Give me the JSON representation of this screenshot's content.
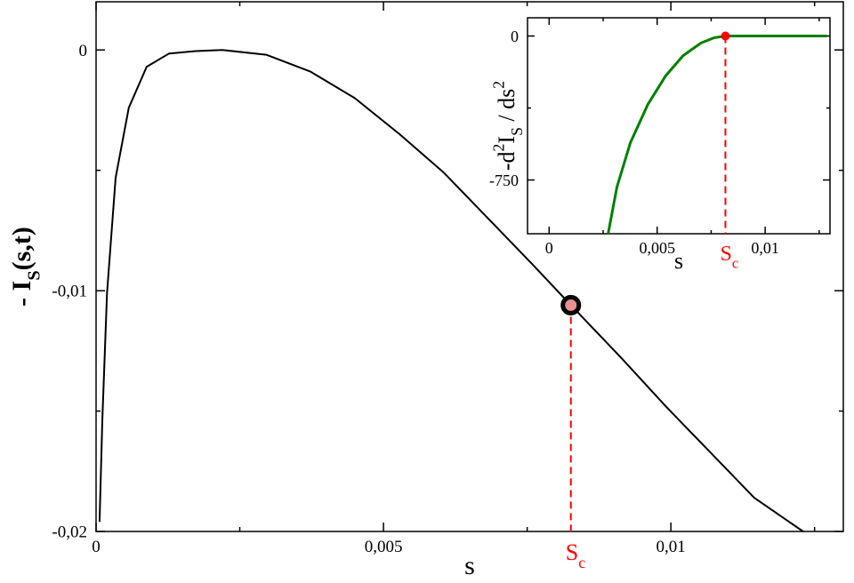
{
  "chart_data": [
    {
      "type": "line",
      "x": [
        6e-05,
        0.00011,
        0.00019,
        0.00034,
        0.00057,
        0.00088,
        0.00127,
        0.00173,
        0.00219,
        0.00296,
        0.00373,
        0.0045,
        0.00528,
        0.00605,
        0.00682,
        0.00759,
        0.00826,
        0.00914,
        0.00991,
        0.01068,
        0.01145,
        0.0123
      ],
      "values": [
        -0.0196,
        -0.0153,
        -0.0101,
        -0.0053,
        -0.0024,
        -0.0007,
        -0.00015,
        -5e-05,
        0,
        -0.0002,
        -0.0009,
        -0.002,
        -0.0035,
        -0.0051,
        -0.007,
        -0.0089,
        -0.0106,
        -0.0128,
        -0.0148,
        -0.0167,
        -0.0186,
        -0.02
      ],
      "color": "#000000",
      "xlabel": "s",
      "ylabel": [
        {
          "text": "- I",
          "pos": "base"
        },
        {
          "text": "S",
          "pos": "sub"
        },
        {
          "text": "(s,t)",
          "pos": "base"
        }
      ],
      "xlim": [
        0,
        0.013
      ],
      "ylim": [
        -0.02,
        0.002
      ],
      "xticks": [
        0,
        {
          "value": 0.005,
          "label": "0,005"
        },
        {
          "value": 0.01,
          "label": "0,01"
        }
      ],
      "yticks": [
        0,
        {
          "value": -0.01,
          "label": "-0,01"
        },
        {
          "value": -0.02,
          "label": "-0,02"
        }
      ],
      "xticks_minor": [
        0.0025,
        0.0075,
        0.0125
      ],
      "yticks_minor": [
        -0.005,
        -0.015
      ],
      "critical_point": {
        "x": 0.00826,
        "y": -0.0106,
        "color": "#ff0000",
        "label": [
          {
            "text": "S",
            "pos": "base"
          },
          {
            "text": "c",
            "pos": "sub"
          }
        ]
      }
    },
    {
      "type": "line",
      "x": [
        0.00273,
        0.00314,
        0.00376,
        0.00457,
        0.00539,
        0.0062,
        0.00702,
        0.00763,
        0.00816,
        0.01286
      ],
      "values": [
        -1030,
        -787,
        -556,
        -356,
        -208,
        -102,
        -37,
        -9,
        0,
        0
      ],
      "color": "#008000",
      "xlabel": "s",
      "ylabel": [
        {
          "text": "-d",
          "pos": "base"
        },
        {
          "text": "2",
          "pos": "sup"
        },
        {
          "text": "I",
          "pos": "base"
        },
        {
          "text": "S",
          "pos": "sub"
        },
        {
          "text": " / ds",
          "pos": "base"
        },
        {
          "text": "2",
          "pos": "sup"
        }
      ],
      "xlim": [
        -0.001,
        0.013
      ],
      "ylim": [
        -1030,
        95
      ],
      "xticks": [
        0,
        {
          "value": 0.005,
          "label": "0,005"
        },
        {
          "value": 0.01,
          "label": "0,01"
        }
      ],
      "yticks": [
        0,
        -750
      ],
      "xticks_minor": [
        0.0025,
        0.0075,
        0.0125
      ],
      "yticks_minor": [
        -375
      ],
      "critical_point": {
        "x": 0.00816,
        "y": 0,
        "color": "#ff0000",
        "label": [
          {
            "text": "S",
            "pos": "base"
          },
          {
            "text": "c",
            "pos": "sub"
          }
        ]
      }
    }
  ]
}
